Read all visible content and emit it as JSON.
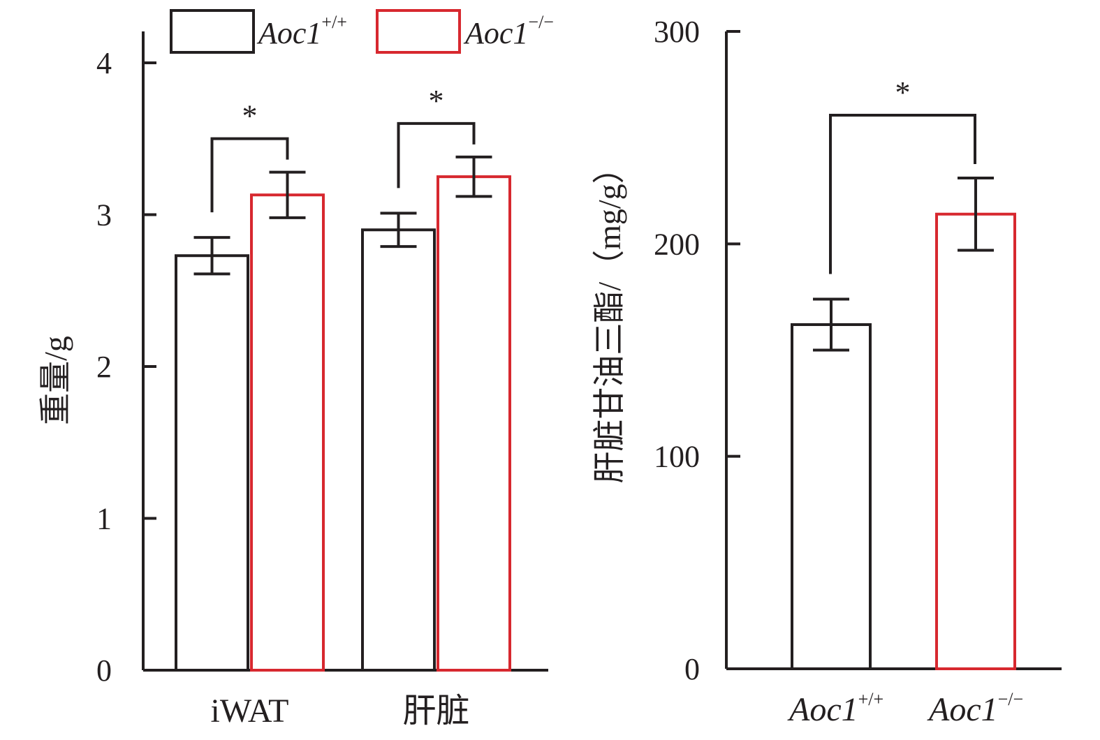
{
  "chart_data": [
    {
      "type": "bar",
      "title": "",
      "ylabel": "重量/g",
      "xlabel": "",
      "ylim": [
        0,
        4
      ],
      "yticks": [
        "0",
        "1",
        "2",
        "3",
        "4"
      ],
      "categories": [
        "iWAT",
        "肝脏"
      ],
      "legend": {
        "placement": "top",
        "entries": [
          {
            "base": "Aoc1",
            "sup": "+/+",
            "color": "#231f20"
          },
          {
            "base": "Aoc1",
            "sup": "−/−",
            "color": "#d7282f"
          }
        ]
      },
      "series": [
        {
          "name": "Aoc1+/+",
          "color": "#231f20",
          "values": [
            2.73,
            2.9
          ],
          "errors": [
            0.12,
            0.11
          ]
        },
        {
          "name": "Aoc1−/−",
          "color": "#d7282f",
          "values": [
            3.13,
            3.25
          ],
          "errors": [
            0.15,
            0.13
          ]
        }
      ],
      "significance": [
        "*",
        "*"
      ]
    },
    {
      "type": "bar",
      "title": "",
      "ylabel": "肝脏甘油三酯/（mg/g）",
      "xlabel": "",
      "ylim": [
        0,
        300
      ],
      "yticks": [
        "0",
        "100",
        "200",
        "300"
      ],
      "categories": [
        {
          "base": "Aoc1",
          "sup": "+/+"
        },
        {
          "base": "Aoc1",
          "sup": "−/−"
        }
      ],
      "colors": [
        "#231f20",
        "#d7282f"
      ],
      "values": [
        162,
        214
      ],
      "errors": [
        12,
        17
      ],
      "significance": "*"
    }
  ]
}
